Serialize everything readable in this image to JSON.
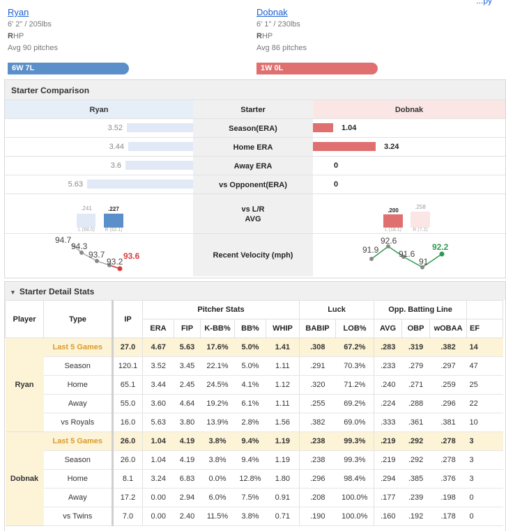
{
  "corner_link": "...py",
  "away": {
    "name": "Ryan",
    "height_weight": "6' 2\" / 205lbs",
    "hand_bold": "R",
    "hand_rest": "HP",
    "avg_pitches": "Avg 90 pitches",
    "record": "6W 7L",
    "color": "#5a8fc9"
  },
  "home": {
    "name": "Dobnak",
    "height_weight": "6' 1\" / 230lbs",
    "hand_bold": "R",
    "hand_rest": "HP",
    "avg_pitches": "Avg 86 pitches",
    "record": "1W 0L",
    "color": "#e07070"
  },
  "comparison": {
    "title": "Starter Comparison",
    "left_header": "Ryan",
    "mid_header": "Starter",
    "right_header": "Dobnak",
    "rows": [
      {
        "label": "Season(ERA)",
        "left": "3.52",
        "right": "1.04",
        "left_num": 3.52,
        "right_num": 1.04
      },
      {
        "label": "Home ERA",
        "left": "3.44",
        "right": "3.24",
        "left_num": 3.44,
        "right_num": 3.24
      },
      {
        "label": "Away ERA",
        "left": "3.6",
        "right": "0",
        "left_num": 3.6,
        "right_num": 0
      },
      {
        "label": "vs Opponent(ERA)",
        "left": "5.63",
        "right": "0",
        "left_num": 5.63,
        "right_num": 0
      }
    ],
    "split_label_1": "vs L/R",
    "split_label_2": "AVG",
    "left_split": {
      "L": {
        "avg": ".241",
        "sub": "L (68.0)"
      },
      "R": {
        "avg": ".227",
        "sub": "R (52.1)"
      }
    },
    "right_split": {
      "L": {
        "avg": ".200",
        "sub": "L (18.1)"
      },
      "R": {
        "avg": ".258",
        "sub": "R (7.2)"
      }
    },
    "velocity_label": "Recent Velocity (mph)",
    "left_velocity": [
      "94.7",
      "94.3",
      "93.7",
      "93.2",
      "93.6"
    ],
    "right_velocity": [
      "91.9",
      "92.6",
      "91.6",
      "91",
      "92.2"
    ]
  },
  "details": {
    "title": "Starter Detail Stats",
    "group_headers": [
      "Pitcher Stats",
      "Luck",
      "Opp. Batting Line"
    ],
    "col_headers": [
      "Player",
      "Type",
      "IP",
      "ERA",
      "FIP",
      "K-BB%",
      "BB%",
      "WHIP",
      "BABIP",
      "LOB%",
      "AVG",
      "OBP",
      "wOBAA",
      "EF"
    ],
    "players": [
      {
        "name": "Ryan",
        "rows": [
          {
            "type": "Last 5 Games",
            "ip": "27.0",
            "era": "4.67",
            "fip": "5.63",
            "kbb": "17.6%",
            "bb": "5.0%",
            "whip": "1.41",
            "babip": ".308",
            "lob": "67.2%",
            "avg": ".283",
            "obp": ".319",
            "woba": ".382",
            "ef": "14"
          },
          {
            "type": "Season",
            "ip": "120.1",
            "era": "3.52",
            "fip": "3.45",
            "kbb": "22.1%",
            "bb": "5.0%",
            "whip": "1.11",
            "babip": ".291",
            "lob": "70.3%",
            "avg": ".233",
            "obp": ".279",
            "woba": ".297",
            "ef": "47"
          },
          {
            "type": "Home",
            "ip": "65.1",
            "era": "3.44",
            "fip": "2.45",
            "kbb": "24.5%",
            "bb": "4.1%",
            "whip": "1.12",
            "babip": ".320",
            "lob": "71.2%",
            "avg": ".240",
            "obp": ".271",
            "woba": ".259",
            "ef": "25"
          },
          {
            "type": "Away",
            "ip": "55.0",
            "era": "3.60",
            "fip": "4.64",
            "kbb": "19.2%",
            "bb": "6.1%",
            "whip": "1.11",
            "babip": ".255",
            "lob": "69.2%",
            "avg": ".224",
            "obp": ".288",
            "woba": ".296",
            "ef": "22"
          },
          {
            "type": "vs Royals",
            "ip": "16.0",
            "era": "5.63",
            "fip": "3.80",
            "kbb": "13.9%",
            "bb": "2.8%",
            "whip": "1.56",
            "babip": ".382",
            "lob": "69.0%",
            "avg": ".333",
            "obp": ".361",
            "woba": ".381",
            "ef": "10"
          }
        ]
      },
      {
        "name": "Dobnak",
        "rows": [
          {
            "type": "Last 5 Games",
            "ip": "26.0",
            "era": "1.04",
            "fip": "4.19",
            "kbb": "3.8%",
            "bb": "9.4%",
            "whip": "1.19",
            "babip": ".238",
            "lob": "99.3%",
            "avg": ".219",
            "obp": ".292",
            "woba": ".278",
            "ef": "3"
          },
          {
            "type": "Season",
            "ip": "26.0",
            "era": "1.04",
            "fip": "4.19",
            "kbb": "3.8%",
            "bb": "9.4%",
            "whip": "1.19",
            "babip": ".238",
            "lob": "99.3%",
            "avg": ".219",
            "obp": ".292",
            "woba": ".278",
            "ef": "3"
          },
          {
            "type": "Home",
            "ip": "8.1",
            "era": "3.24",
            "fip": "6.83",
            "kbb": "0.0%",
            "bb": "12.8%",
            "whip": "1.80",
            "babip": ".296",
            "lob": "98.4%",
            "avg": ".294",
            "obp": ".385",
            "woba": ".376",
            "ef": "3"
          },
          {
            "type": "Away",
            "ip": "17.2",
            "era": "0.00",
            "fip": "2.94",
            "kbb": "6.0%",
            "bb": "7.5%",
            "whip": "0.91",
            "babip": ".208",
            "lob": "100.0%",
            "avg": ".177",
            "obp": ".239",
            "woba": ".198",
            "ef": "0"
          },
          {
            "type": "vs Twins",
            "ip": "7.0",
            "era": "0.00",
            "fip": "2.40",
            "kbb": "11.5%",
            "bb": "3.8%",
            "whip": "0.71",
            "babip": ".190",
            "lob": "100.0%",
            "avg": ".160",
            "obp": ".192",
            "woba": ".178",
            "ef": "0"
          }
        ]
      }
    ]
  },
  "colors": {
    "ryan_light": "#e6eef8",
    "ryan_bar": "#5a8fc9",
    "dob_light": "#fbe6e6",
    "dob_bar": "#e07070",
    "good": "#2e9a4e",
    "bad": "#d63b3b",
    "last5_bg": "#fdf4d8"
  }
}
